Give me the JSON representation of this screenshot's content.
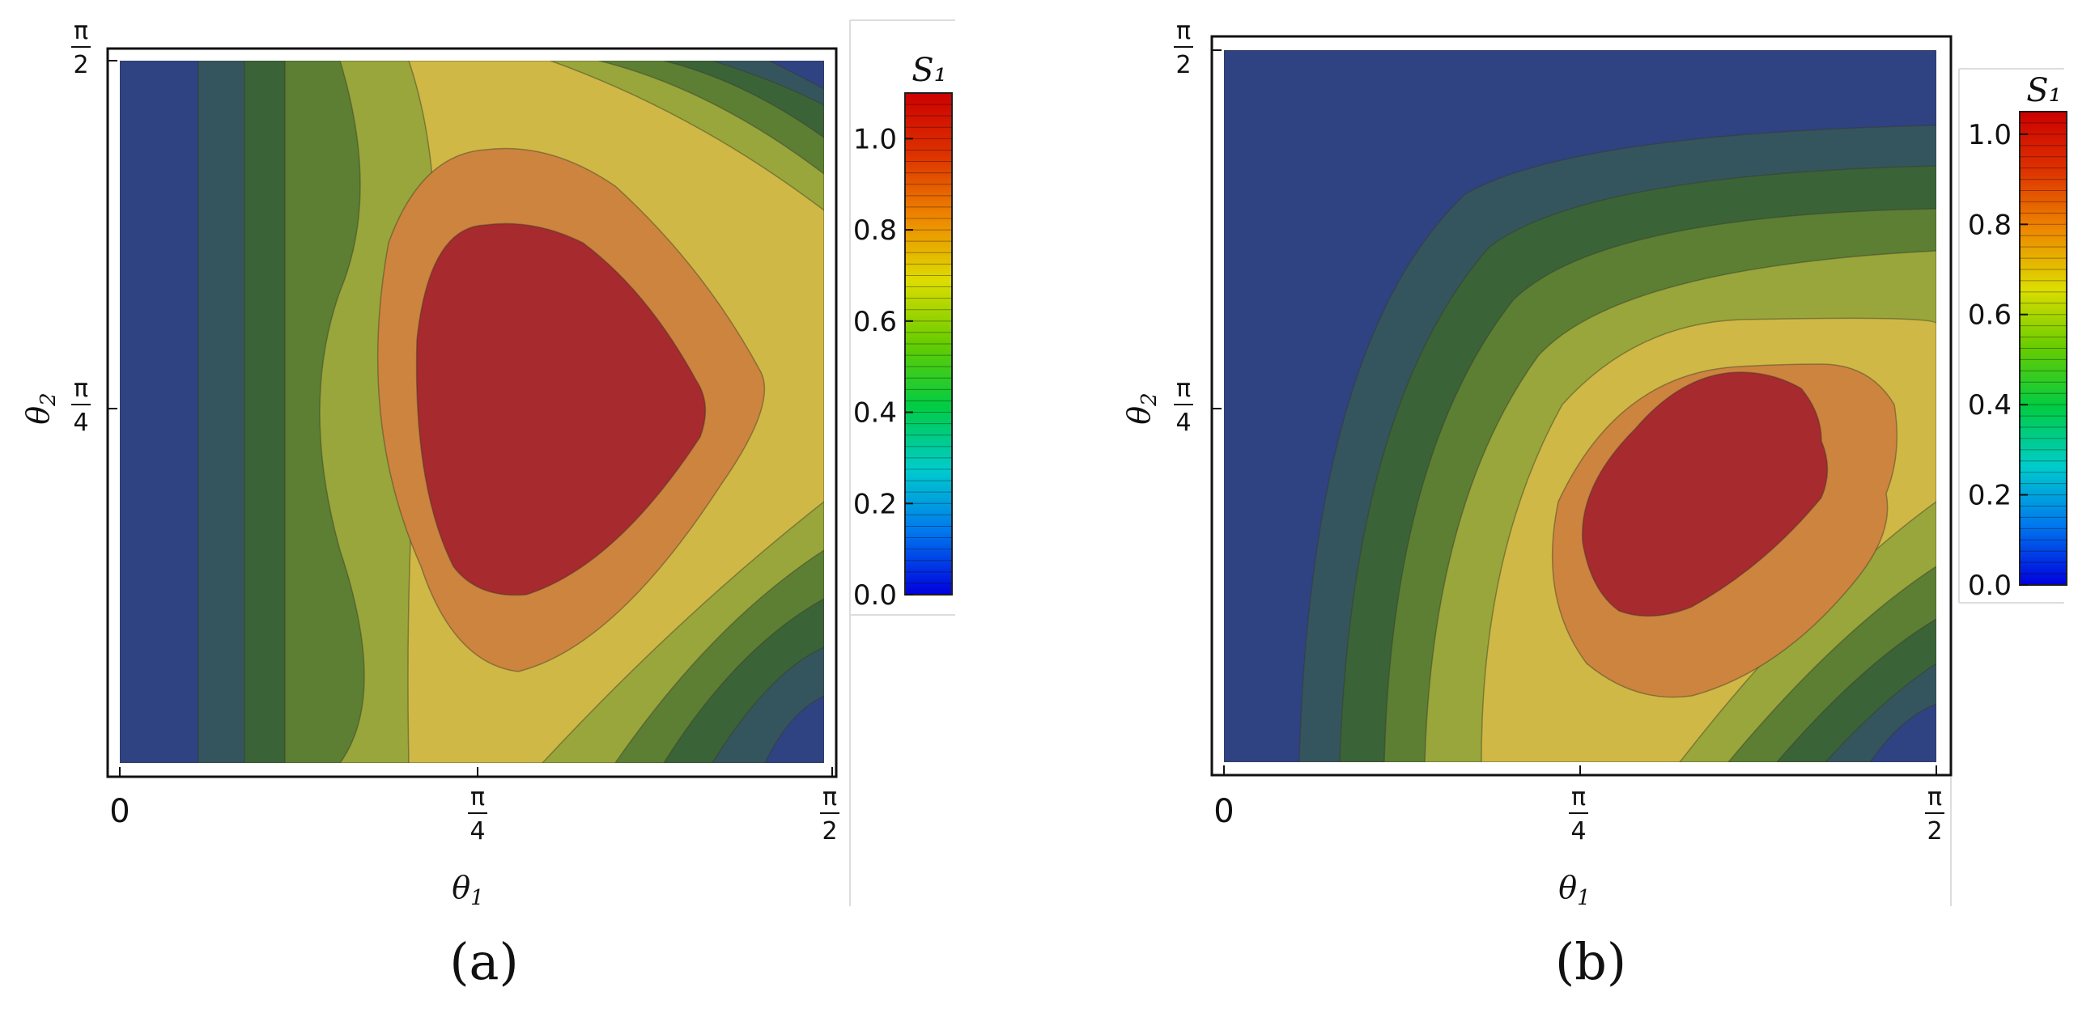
{
  "chart_data": [
    {
      "type": "heatmap",
      "subtype": "filled-contour",
      "panel_label": "(a)",
      "xlabel": "θ₁",
      "ylabel": "θ₂",
      "x_ticks": [
        "0",
        "π/4",
        "π/2"
      ],
      "y_ticks": [
        "π/4",
        "π/2"
      ],
      "xlim": [
        0,
        1.5708
      ],
      "ylim": [
        0,
        1.5708
      ],
      "colorbar": {
        "title": "S₁",
        "range": [
          0.0,
          1.1
        ],
        "ticks": [
          "0.0",
          "0.2",
          "0.4",
          "0.6",
          "0.8",
          "1.0"
        ],
        "gradient": [
          "#0000dd",
          "#0077ee",
          "#00cccc",
          "#00cc44",
          "#66cc00",
          "#dddd00",
          "#ee8800",
          "#dd3300",
          "#cc0000"
        ]
      },
      "contour_levels": [
        0.0,
        0.15,
        0.3,
        0.45,
        0.6,
        0.75,
        0.9,
        1.05
      ],
      "level_colors": [
        "#2f4282",
        "#35555e",
        "#3b6338",
        "#5c7f34",
        "#98a63b",
        "#d0b846",
        "#cc843f",
        "#a62a2e"
      ],
      "max_value_approx": 1.05,
      "max_location_approx": [
        0.85,
        0.785
      ],
      "minima_regions": [
        "left edge (θ₁≈0)",
        "top-right corner",
        "bottom-right corner"
      ]
    },
    {
      "type": "heatmap",
      "subtype": "filled-contour",
      "panel_label": "(b)",
      "xlabel": "θ₁",
      "ylabel": "θ₂",
      "x_ticks": [
        "0",
        "π/4",
        "π/2"
      ],
      "y_ticks": [
        "π/4",
        "π/2"
      ],
      "xlim": [
        0,
        1.5708
      ],
      "ylim": [
        0,
        1.5708
      ],
      "colorbar": {
        "title": "S₁",
        "range": [
          0.0,
          1.05
        ],
        "ticks": [
          "0.0",
          "0.2",
          "0.4",
          "0.6",
          "0.8",
          "1.0"
        ],
        "gradient": [
          "#0000dd",
          "#0077ee",
          "#00cccc",
          "#00cc44",
          "#66cc00",
          "#dddd00",
          "#ee8800",
          "#dd3300",
          "#cc0000"
        ]
      },
      "contour_levels": [
        0.0,
        0.15,
        0.3,
        0.45,
        0.6,
        0.75,
        0.9,
        1.05
      ],
      "level_colors": [
        "#2f4282",
        "#35555e",
        "#3b6338",
        "#5c7f34",
        "#98a63b",
        "#d0b846",
        "#cc843f",
        "#a62a2e"
      ],
      "max_value_approx": 1.0,
      "max_location_approx": [
        0.95,
        0.6
      ],
      "minima_regions": [
        "left and top (θ₁≈0 or θ₂≈π/2)",
        "bottom-right corner"
      ]
    }
  ]
}
